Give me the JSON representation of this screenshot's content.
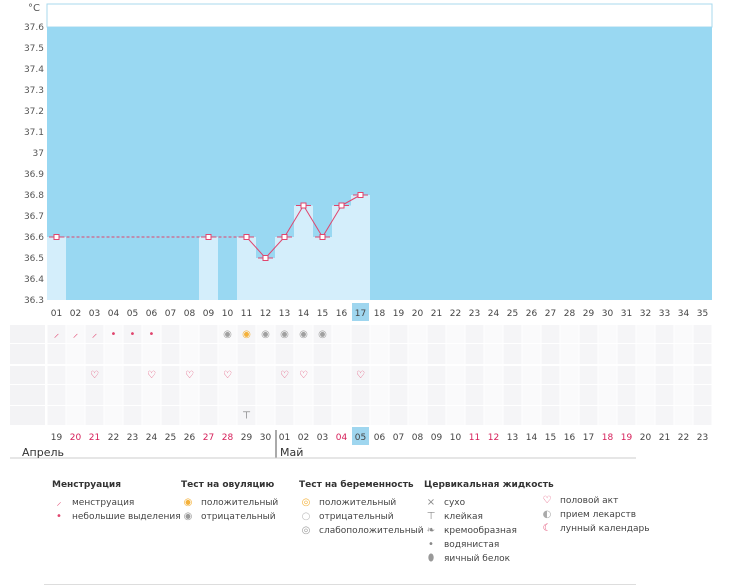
{
  "unit_label": "°C",
  "months": {
    "first": "Апрель",
    "second": "Май"
  },
  "chart_data": {
    "type": "line",
    "title": "",
    "xlabel": "",
    "ylabel": "°C",
    "ylim": [
      36.3,
      37.6
    ],
    "y_ticks": [
      "36.3",
      "36.4",
      "36.5",
      "36.6",
      "36.7",
      "36.8",
      "36.9",
      "37",
      "37.1",
      "37.2",
      "37.3",
      "37.4",
      "37.5",
      "37.6"
    ],
    "cycle_days": [
      "01",
      "02",
      "03",
      "04",
      "05",
      "06",
      "07",
      "08",
      "09",
      "10",
      "11",
      "12",
      "13",
      "14",
      "15",
      "16",
      "17",
      "18",
      "19",
      "20",
      "21",
      "22",
      "23",
      "24",
      "25",
      "26",
      "27",
      "28",
      "29",
      "30",
      "31",
      "32",
      "33",
      "34",
      "35"
    ],
    "calendar_dates": [
      "19",
      "20",
      "21",
      "22",
      "23",
      "24",
      "25",
      "26",
      "27",
      "28",
      "29",
      "30",
      "01",
      "02",
      "03",
      "04",
      "05",
      "06",
      "07",
      "08",
      "09",
      "10",
      "11",
      "12",
      "13",
      "14",
      "15",
      "16",
      "17",
      "18",
      "19",
      "20",
      "21",
      "22",
      "23"
    ],
    "highlight_dates": [
      "20",
      "21",
      "27",
      "28",
      "04",
      "11",
      "12",
      "18",
      "19"
    ],
    "current_day_index": 16,
    "series": [
      {
        "values": [
          {
            "day": 1,
            "temp": 36.6
          },
          {
            "day": 9,
            "temp": 36.6
          },
          {
            "day": 11,
            "temp": 36.6
          },
          {
            "day": 12,
            "temp": 36.5
          },
          {
            "day": 13,
            "temp": 36.6
          },
          {
            "day": 14,
            "temp": 36.75
          },
          {
            "day": 15,
            "temp": 36.6
          },
          {
            "day": 16,
            "temp": 36.75
          },
          {
            "day": 17,
            "temp": 36.8
          }
        ]
      }
    ],
    "markers": {
      "menstruation_heavy_days": [
        1,
        2,
        3
      ],
      "menstruation_light_days": [
        4,
        5,
        6
      ],
      "ovulation_test_negative_days": [
        10,
        12,
        13,
        14,
        15
      ],
      "ovulation_test_positive_days": [
        11
      ],
      "intercourse_days": [
        3,
        6,
        8,
        10,
        13,
        14,
        17
      ],
      "cervical_fluid_sticky_days": [
        11
      ]
    },
    "colors": {
      "sky": "#99d8f2",
      "bar": "#d4eefb",
      "line": "#e0456e",
      "highlight": "#9fd6ef",
      "date_red": "#d6205a"
    }
  },
  "legend": {
    "menstruation": {
      "title": "Менструация",
      "items": [
        "менструация",
        "небольшие выделения"
      ]
    },
    "ovulation_test": {
      "title": "Тест на овуляцию",
      "items": [
        "положительный",
        "отрицательный"
      ]
    },
    "pregnancy_test": {
      "title": "Тест на беременность",
      "items": [
        "положительный",
        "отрицательный",
        "слабоположительный"
      ]
    },
    "cervical_fluid": {
      "title": "Цервикальная жидкость",
      "items": [
        "сухо",
        "клейкая",
        "кремообразная",
        "водянистая",
        "яичный белок"
      ]
    },
    "other": {
      "items": [
        "половой акт",
        "прием лекарств",
        "лунный календарь"
      ]
    }
  }
}
